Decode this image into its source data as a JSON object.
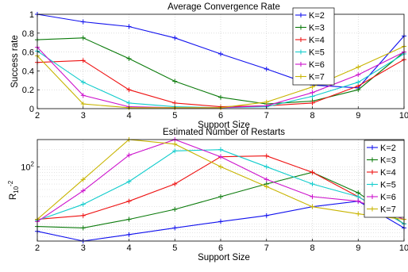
{
  "chart_data": [
    {
      "type": "line",
      "title": "Average Convergence Rate",
      "xlabel": "Support Size",
      "ylabel": "Success rate",
      "x": [
        2,
        3,
        4,
        5,
        6,
        7,
        8,
        9,
        10
      ],
      "xlim": [
        2,
        10
      ],
      "ylim": [
        0,
        1
      ],
      "yticks": [
        "0",
        "0.2",
        "0.4",
        "0.6",
        "0.8",
        "1"
      ],
      "grid": true,
      "legend_position": "top-right",
      "series": [
        {
          "name": "K=2",
          "color": "#1010ee",
          "values": [
            1.0,
            0.92,
            0.87,
            0.75,
            0.58,
            0.42,
            0.25,
            0.22,
            0.77
          ]
        },
        {
          "name": "K=3",
          "color": "#0a7a0a",
          "values": [
            0.73,
            0.75,
            0.53,
            0.29,
            0.12,
            0.05,
            0.08,
            0.2,
            0.6
          ]
        },
        {
          "name": "K=4",
          "color": "#ee1111",
          "values": [
            0.49,
            0.51,
            0.2,
            0.06,
            0.02,
            0.03,
            0.06,
            0.24,
            0.52
          ]
        },
        {
          "name": "K=5",
          "color": "#11cccc",
          "values": [
            0.61,
            0.28,
            0.06,
            0.02,
            0.01,
            0.02,
            0.13,
            0.28,
            0.58
          ]
        },
        {
          "name": "K=6",
          "color": "#cc11cc",
          "values": [
            0.65,
            0.14,
            0.02,
            0.01,
            0.01,
            0.03,
            0.17,
            0.36,
            0.6
          ]
        },
        {
          "name": "K=7",
          "color": "#c8b400",
          "values": [
            0.56,
            0.05,
            0.01,
            0.01,
            0.01,
            0.07,
            0.23,
            0.44,
            0.66
          ]
        }
      ]
    },
    {
      "type": "line",
      "title": "Estimated Number of Restarts",
      "xlabel": "Support Size",
      "ylabel": "R",
      "ylabel_subscript": "10",
      "ylabel_superscript": "-2",
      "y_scale": "log",
      "x": [
        2,
        3,
        4,
        5,
        6,
        7,
        8,
        9,
        10
      ],
      "xlim": [
        2,
        10
      ],
      "ylim": [
        5,
        300
      ],
      "yticks": [
        {
          "label": "10",
          "sup": "2",
          "value": 100
        }
      ],
      "grid": true,
      "legend_position": "top-right",
      "series": [
        {
          "name": "K=2",
          "color": "#1010ee",
          "values": [
            7.4,
            5,
            6.5,
            8.5,
            11,
            14,
            20,
            25,
            8.5
          ]
        },
        {
          "name": "K=3",
          "color": "#0a7a0a",
          "values": [
            9,
            8.5,
            12,
            18,
            30,
            50,
            80,
            35,
            10
          ]
        },
        {
          "name": "K=4",
          "color": "#ee1111",
          "values": [
            12,
            14,
            25,
            50,
            150,
            155,
            80,
            30,
            10
          ]
        },
        {
          "name": "K=5",
          "color": "#11cccc",
          "values": [
            11.5,
            22,
            55,
            190,
            200,
            100,
            50,
            30,
            10
          ]
        },
        {
          "name": "K=6",
          "color": "#cc11cc",
          "values": [
            11,
            38,
            160,
            300,
            150,
            60,
            30,
            25,
            12
          ]
        },
        {
          "name": "K=7",
          "color": "#c8b400",
          "values": [
            12,
            60,
            300,
            250,
            100,
            45,
            20,
            15,
            12
          ]
        }
      ]
    }
  ]
}
